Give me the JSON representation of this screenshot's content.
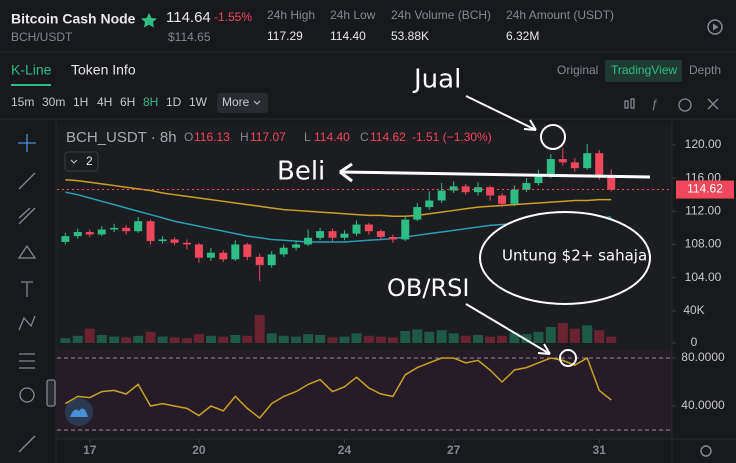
{
  "header": {
    "name": "Bitcoin Cash Node",
    "price": "114.64",
    "change": "-1.55%",
    "pair": "BCH/USDT",
    "usd_price": "$114.65",
    "stats": [
      {
        "label": "24h High",
        "value": "117.29"
      },
      {
        "label": "24h Low",
        "value": "114.40"
      },
      {
        "label": "24h Volume (BCH)",
        "value": "53.88K"
      },
      {
        "label": "24h Amount (USDT)",
        "value": "6.32M"
      }
    ]
  },
  "tabs": {
    "left": [
      "K-Line",
      "Token Info"
    ],
    "right": [
      "Original",
      "TradingView",
      "Depth"
    ]
  },
  "toolbar": {
    "intervals": [
      "15m",
      "30m",
      "1H",
      "4H",
      "6H",
      "8H",
      "1D",
      "1W"
    ],
    "active": "8H",
    "more": "More"
  },
  "indicator_count": "2",
  "annotations": {
    "sell": "Jual",
    "buy": "Beli",
    "ob_rsi": "OB/RSI",
    "target": "Untung $2+ sahaja"
  },
  "chart_data": {
    "type": "candlestick",
    "legend_title": "BCH_USDT · 8h",
    "ohlc_legend": [
      {
        "key": "O",
        "value": "116.13"
      },
      {
        "key": "H",
        "value": "117.07"
      },
      {
        "key": "L",
        "value": "114.40"
      },
      {
        "key": "C",
        "value": "114.62"
      }
    ],
    "change_label": "-1.51 (−1.30%)",
    "up_color": "#2ebd85",
    "down_color": "#f0475c",
    "volume_up_color": "#1e5a46",
    "volume_down_color": "#6a2331",
    "x": [
      16.33,
      16.67,
      17,
      17.33,
      17.67,
      18,
      18.33,
      18.67,
      19,
      19.33,
      19.67,
      20,
      20.33,
      20.67,
      21,
      21.33,
      21.67,
      22,
      22.33,
      22.67,
      23,
      23.33,
      23.67,
      24,
      24.33,
      24.67,
      25,
      25.33,
      25.67,
      26,
      26.33,
      26.67,
      27,
      27.33,
      27.67,
      28,
      28.33,
      28.67,
      29,
      29.33,
      29.67,
      30,
      30.33,
      30.67,
      31,
      31.33
    ],
    "xlim": [
      16.1,
      33.0
    ],
    "xticks": [
      17,
      20,
      24,
      27,
      31
    ],
    "open": [
      108.3,
      109.0,
      109.5,
      109.2,
      109.8,
      110.0,
      109.6,
      110.8,
      108.4,
      108.6,
      108.2,
      108.0,
      106.4,
      107.0,
      106.2,
      108.0,
      106.5,
      105.5,
      106.8,
      107.6,
      108.0,
      108.8,
      109.6,
      108.8,
      109.3,
      110.4,
      109.6,
      108.9,
      108.6,
      111.0,
      112.5,
      113.3,
      114.5,
      115.0,
      114.3,
      114.9,
      113.9,
      112.9,
      114.6,
      115.4,
      116.2,
      118.3,
      117.9,
      117.2,
      119.0,
      116.13
    ],
    "close": [
      109.0,
      109.5,
      109.2,
      109.8,
      110.0,
      109.6,
      110.8,
      108.4,
      108.6,
      108.2,
      108.0,
      106.4,
      107.0,
      106.2,
      108.0,
      106.5,
      105.5,
      106.8,
      107.6,
      108.0,
      108.8,
      109.6,
      108.8,
      109.3,
      110.4,
      109.6,
      108.9,
      108.6,
      111.0,
      112.5,
      113.3,
      114.5,
      115.0,
      114.3,
      114.9,
      113.9,
      112.9,
      114.6,
      115.4,
      116.2,
      118.3,
      117.9,
      117.2,
      119.0,
      116.13,
      114.62
    ],
    "high": [
      109.4,
      109.9,
      109.8,
      110.2,
      110.5,
      110.3,
      111.3,
      111.0,
      109.0,
      108.9,
      108.6,
      108.2,
      107.6,
      107.3,
      108.5,
      108.2,
      106.9,
      107.2,
      108.0,
      108.5,
      109.8,
      110.0,
      109.9,
      109.7,
      110.9,
      110.6,
      109.8,
      109.2,
      111.5,
      113.0,
      114.4,
      115.4,
      115.6,
      115.3,
      115.5,
      115.1,
      114.2,
      115.1,
      116.0,
      117.0,
      118.9,
      119.6,
      118.4,
      120.1,
      119.4,
      117.07
    ],
    "low": [
      108.0,
      108.7,
      108.9,
      109.0,
      109.5,
      109.2,
      109.4,
      108.0,
      108.1,
      107.9,
      107.4,
      105.8,
      106.0,
      105.9,
      106.0,
      106.1,
      103.6,
      105.2,
      106.5,
      107.3,
      107.8,
      108.5,
      108.4,
      108.5,
      109.0,
      109.2,
      108.6,
      108.2,
      108.4,
      110.8,
      112.2,
      113.0,
      114.2,
      114.0,
      113.9,
      113.3,
      112.5,
      112.6,
      114.3,
      115.1,
      116.0,
      117.5,
      116.8,
      117.0,
      115.8,
      114.4
    ],
    "ylim": [
      101.3,
      121.8
    ],
    "yticks": [
      {
        "value": 120,
        "label": "120.00"
      },
      {
        "value": 116,
        "label": "116.00"
      },
      {
        "value": 112,
        "label": "112.00"
      },
      {
        "value": 108,
        "label": "108.00"
      },
      {
        "value": 104,
        "label": "104.00"
      }
    ],
    "last_price": 114.62,
    "ma_lines": [
      {
        "color": "#c9a227",
        "values": [
          115.8,
          115.7,
          115.5,
          115.3,
          115.1,
          114.9,
          114.7,
          114.5,
          114.2,
          114.0,
          113.8,
          113.6,
          113.4,
          113.2,
          113.0,
          112.8,
          112.6,
          112.4,
          112.2,
          112.1,
          112.0,
          111.9,
          111.8,
          111.7,
          111.6,
          111.5,
          111.5,
          111.4,
          111.4,
          111.5,
          111.7,
          111.9,
          112.1,
          112.3,
          112.5,
          112.6,
          112.7,
          112.8,
          112.9,
          113.0,
          113.1,
          113.2,
          113.3,
          113.3,
          113.4,
          113.4
        ]
      },
      {
        "color": "#2a9fb5",
        "values": [
          114.3,
          114.0,
          113.6,
          113.2,
          112.8,
          112.4,
          112.0,
          111.6,
          111.2,
          110.8,
          110.5,
          110.2,
          109.9,
          109.6,
          109.3,
          109.0,
          108.8,
          108.6,
          108.5,
          108.4,
          108.3,
          108.3,
          108.3,
          108.3,
          108.4,
          108.5,
          108.6,
          108.7,
          108.9,
          109.1,
          109.3,
          109.5,
          109.7,
          109.9,
          110.1,
          110.3,
          110.4,
          110.5,
          110.6,
          110.7,
          110.8,
          110.9,
          111.0,
          111.1,
          111.2,
          111.3
        ]
      }
    ],
    "volume": [
      6000,
      9000,
      18000,
      10000,
      8000,
      7000,
      9000,
      14000,
      8000,
      7000,
      6000,
      11000,
      9000,
      8000,
      10000,
      9000,
      35000,
      12000,
      9000,
      8000,
      11000,
      10000,
      7000,
      8000,
      12000,
      9000,
      8000,
      7000,
      15000,
      17000,
      14000,
      16000,
      12000,
      9000,
      10000,
      8000,
      9000,
      13000,
      11000,
      14000,
      20000,
      25000,
      18000,
      22000,
      16000,
      8000
    ],
    "volume_lim": [
      0,
      53750
    ],
    "volume_ticks": [
      {
        "value": 40000,
        "label": "40K"
      },
      0
    ],
    "rsi": [
      42,
      48,
      47,
      52,
      53,
      50,
      58,
      40,
      42,
      40,
      38,
      32,
      40,
      36,
      48,
      38,
      30,
      42,
      48,
      52,
      58,
      62,
      52,
      56,
      64,
      55,
      50,
      48,
      66,
      72,
      76,
      80,
      80,
      76,
      78,
      70,
      60,
      70,
      72,
      76,
      80,
      78,
      74,
      80,
      53,
      45
    ],
    "rsi_color": "#c9a227",
    "rsi_lim": [
      18.33,
      86.67
    ],
    "rsi_band": [
      20,
      80
    ],
    "rsi_ticks": [
      {
        "value": 80,
        "label": "80.0000"
      },
      {
        "value": 40,
        "label": "40.0000"
      }
    ]
  }
}
